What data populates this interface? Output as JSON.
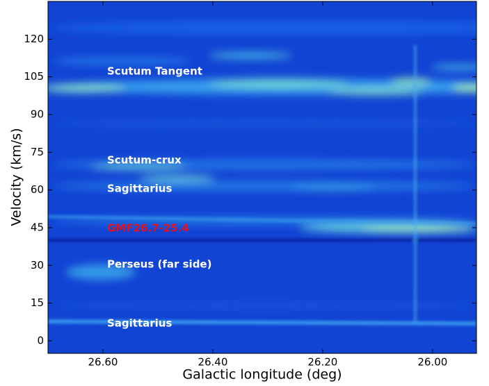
{
  "chart_data": {
    "type": "image",
    "x_label": "Galactic longitude (deg)",
    "y_label": "Velocity (km/s)",
    "xlim": [
      26.7,
      25.92
    ],
    "ylim": [
      -5,
      135
    ],
    "xticks": [
      {
        "value": 26.6,
        "label": "26.60"
      },
      {
        "value": 26.4,
        "label": "26.40"
      },
      {
        "value": 26.2,
        "label": "26.20"
      },
      {
        "value": 26.0,
        "label": "26.00"
      }
    ],
    "yticks": [
      0,
      15,
      30,
      45,
      60,
      75,
      90,
      105,
      120
    ],
    "annotations": [
      {
        "text": "Scutum Tangent",
        "color": "#ffffff"
      },
      {
        "text": "Scutum-crux",
        "color": "#ffffff"
      },
      {
        "text": "Sagittarius",
        "color": "#ffffff"
      },
      {
        "text": "GMF26.7-25.4",
        "color": "#e8101a"
      },
      {
        "text": "Perseus (far side)",
        "color": "#ffffff"
      },
      {
        "text": "Sagittarius",
        "color": "#ffffff"
      }
    ]
  }
}
